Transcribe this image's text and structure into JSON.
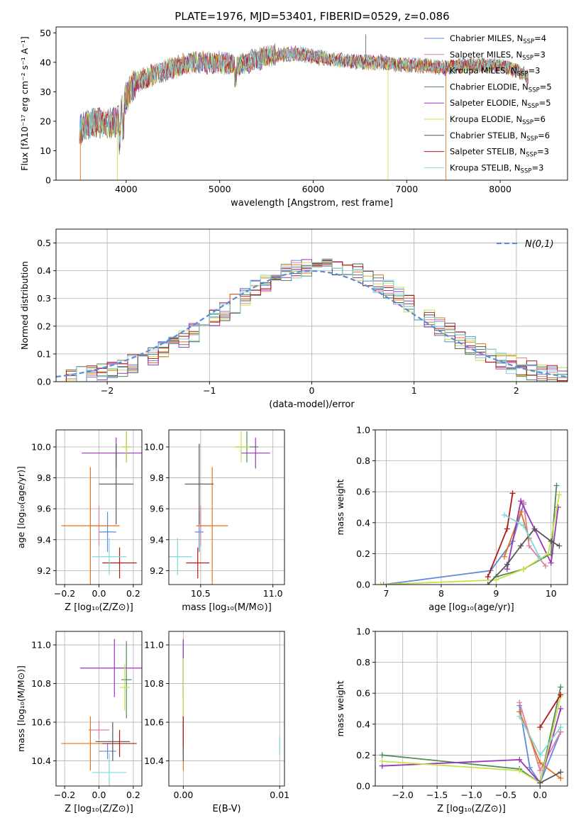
{
  "figure": {
    "title": "PLATE=1976, MJD=53401, FIBERID=0529, z=0.086"
  },
  "models": [
    {
      "name": "Chabrier MILES, N$_{SSP}$=4",
      "label": "Chabrier MILES, N",
      "sub": "SSP",
      "suffix": "=4",
      "color": "#5b8bd9"
    },
    {
      "name": "Salpeter MILES, N$_{SSP}$=3",
      "label": "Salpeter MILES, N",
      "sub": "SSP",
      "suffix": "=3",
      "color": "#e0809f"
    },
    {
      "name": "Kroupa MILES, N$_{SSP}$=3",
      "label": "Kroupa MILES, N",
      "sub": "SSP",
      "suffix": "=3",
      "color": "#e4731f"
    },
    {
      "name": "Chabrier ELODIE, N$_{SSP}$=5",
      "label": "Chabrier ELODIE, N",
      "sub": "SSP",
      "suffix": "=5",
      "color": "#4f8a5a"
    },
    {
      "name": "Salpeter ELODIE, N$_{SSP}$=5",
      "label": "Salpeter ELODIE, N",
      "sub": "SSP",
      "suffix": "=5",
      "color": "#9a35b8"
    },
    {
      "name": "Kroupa ELODIE, N$_{SSP}$=6",
      "label": "Kroupa ELODIE, N",
      "sub": "SSP",
      "suffix": "=6",
      "color": "#c8e04a"
    },
    {
      "name": "Chabrier STELIB, N$_{SSP}$=6",
      "label": "Chabrier STELIB, N",
      "sub": "SSP",
      "suffix": "=6",
      "color": "#555555"
    },
    {
      "name": "Salpeter STELIB, N$_{SSP}$=3",
      "label": "Salpeter STELIB, N",
      "sub": "SSP",
      "suffix": "=3",
      "color": "#b01818"
    },
    {
      "name": "Kroupa STELIB, N$_{SSP}$=3",
      "label": "Kroupa STELIB, N",
      "sub": "SSP",
      "suffix": "=3",
      "color": "#7fd8dc"
    }
  ],
  "chart_data": [
    {
      "id": "spectrum",
      "type": "line",
      "xlabel": "wavelength [Angstrom, rest frame]",
      "ylabel": "Flux [fλ10⁻¹⁷ erg cm⁻² s⁻¹ A⁻¹]",
      "xlim": [
        3250,
        8720
      ],
      "ylim": [
        0,
        52
      ],
      "xticks": [
        4000,
        5000,
        6000,
        7000,
        8000
      ],
      "yticks": [
        0,
        10,
        20,
        30,
        40,
        50
      ],
      "grid": false,
      "legend": "upper right",
      "continuum": {
        "x": [
          3500,
          3600,
          3700,
          3800,
          3900,
          4000,
          4100,
          4300,
          4500,
          4700,
          5000,
          5200,
          5500,
          5800,
          6000,
          6200,
          6500,
          6700,
          7000,
          7200,
          7400,
          7600,
          7800,
          8000,
          8200,
          8300
        ],
        "y": [
          17,
          19,
          20,
          19,
          20,
          28,
          33,
          36,
          38,
          40,
          40,
          39,
          42,
          43,
          42,
          41,
          40,
          40,
          39,
          39,
          38,
          39,
          39,
          39,
          37,
          35
        ]
      }
    },
    {
      "id": "residuals",
      "type": "histogram",
      "xlabel": "(data-model)/error",
      "ylabel": "Normed distribution",
      "xlim": [
        -2.5,
        2.5
      ],
      "ylim": [
        0,
        0.55
      ],
      "xticks": [
        -2,
        -1,
        0,
        1,
        2
      ],
      "yticks": [
        0.0,
        0.1,
        0.2,
        0.3,
        0.4,
        0.5
      ],
      "grid": true,
      "legend": "upper right",
      "reference": {
        "label": "N(0,1)",
        "color": "#5b8bd9",
        "style": "dashed",
        "mean": 0,
        "sigma": 1
      },
      "bin_width": 0.1
    },
    {
      "id": "age-vs-Z",
      "type": "scatter",
      "xlabel": "Z [log₁₀(Z/Z⊙)]",
      "ylabel": "age  [log₁₀(age/yr)]",
      "xlim": [
        -0.25,
        0.25
      ],
      "ylim": [
        9.11,
        10.11
      ],
      "xticks": [
        -0.2,
        0.0,
        0.2
      ],
      "yticks": [
        9.2,
        9.4,
        9.6,
        9.8,
        10.0
      ],
      "grid": true,
      "errorbars": [
        {
          "model": 0,
          "x": 0.05,
          "y": 9.45,
          "xerr": 0.05,
          "yerr": 0.13
        },
        {
          "model": 1,
          "x": 0.0,
          "y": 9.49,
          "xerr": 0.05,
          "yerr": 0.13
        },
        {
          "model": 2,
          "x": -0.05,
          "y": 9.49,
          "xerr": 0.17,
          "yerr": 0.38
        },
        {
          "model": 3,
          "x": 0.16,
          "y": 10.0,
          "xerr": 0.03,
          "yerr": 0.1
        },
        {
          "model": 4,
          "x": 0.1,
          "y": 9.96,
          "xerr": 0.2,
          "yerr": 0.1
        },
        {
          "model": 5,
          "x": 0.16,
          "y": 10.0,
          "xerr": 0.03,
          "yerr": 0.1
        },
        {
          "model": 6,
          "x": 0.1,
          "y": 9.76,
          "xerr": 0.1,
          "yerr": 0.26
        },
        {
          "model": 7,
          "x": 0.12,
          "y": 9.25,
          "xerr": 0.1,
          "yerr": 0.1
        },
        {
          "model": 8,
          "x": 0.06,
          "y": 9.29,
          "xerr": 0.1,
          "yerr": 0.12
        }
      ]
    },
    {
      "id": "age-vs-mass",
      "type": "scatter",
      "xlabel": "mass [log₁₀(M/M⊙)]",
      "ylabel": "",
      "xlim": [
        10.28,
        11.08
      ],
      "ylim": [
        9.11,
        10.11
      ],
      "xticks": [
        10.5,
        11.0
      ],
      "yticks": [
        9.2,
        9.4,
        9.6,
        9.8,
        10.0
      ],
      "grid": true,
      "errorbars": [
        {
          "model": 0,
          "x": 10.49,
          "y": 9.45,
          "xerr": 0.03,
          "yerr": 0.13
        },
        {
          "model": 1,
          "x": 10.5,
          "y": 9.49,
          "xerr": 0.03,
          "yerr": 0.13
        },
        {
          "model": 2,
          "x": 10.58,
          "y": 9.49,
          "xerr": 0.11,
          "yerr": 0.38
        },
        {
          "model": 3,
          "x": 10.82,
          "y": 10.0,
          "xerr": 0.08,
          "yerr": 0.1
        },
        {
          "model": 4,
          "x": 10.88,
          "y": 9.96,
          "xerr": 0.1,
          "yerr": 0.1
        },
        {
          "model": 5,
          "x": 10.78,
          "y": 10.0,
          "xerr": 0.06,
          "yerr": 0.1
        },
        {
          "model": 6,
          "x": 10.49,
          "y": 9.76,
          "xerr": 0.1,
          "yerr": 0.26
        },
        {
          "model": 7,
          "x": 10.48,
          "y": 9.25,
          "xerr": 0.08,
          "yerr": 0.1
        },
        {
          "model": 8,
          "x": 10.34,
          "y": 9.29,
          "xerr": 0.1,
          "yerr": 0.12
        }
      ]
    },
    {
      "id": "mass-weight-vs-age",
      "type": "line",
      "xlabel": "age  [log₁₀(age/yr)]",
      "ylabel": "mass weight",
      "xlim": [
        6.8,
        10.3
      ],
      "ylim": [
        0,
        1
      ],
      "xticks": [
        7,
        8,
        9,
        10
      ],
      "yticks": [
        0.0,
        0.2,
        0.4,
        0.6,
        0.8,
        1.0
      ],
      "grid": true,
      "series": [
        {
          "model": 0,
          "x": [
            6.95,
            8.9,
            9.3,
            9.5
          ],
          "y": [
            0.0,
            0.09,
            0.28,
            0.52
          ]
        },
        {
          "model": 1,
          "x": [
            9.5,
            9.6,
            9.9
          ],
          "y": [
            0.53,
            0.25,
            0.12
          ]
        },
        {
          "model": 2,
          "x": [
            9.15,
            9.45,
            9.6
          ],
          "y": [
            0.18,
            0.47,
            0.3
          ]
        },
        {
          "model": 3,
          "x": [
            9.0,
            9.5,
            10.0,
            10.1
          ],
          "y": [
            0.05,
            0.1,
            0.2,
            0.64
          ]
        },
        {
          "model": 4,
          "x": [
            9.2,
            9.45,
            10.0,
            10.13
          ],
          "y": [
            0.1,
            0.54,
            0.14,
            0.5
          ]
        },
        {
          "model": 5,
          "x": [
            6.9,
            9.0,
            9.5,
            9.95,
            10.15
          ],
          "y": [
            0.0,
            0.03,
            0.1,
            0.2,
            0.58
          ]
        },
        {
          "model": 6,
          "x": [
            8.85,
            9.2,
            9.45,
            9.7,
            10.0,
            10.15
          ],
          "y": [
            0.0,
            0.13,
            0.25,
            0.36,
            0.28,
            0.25
          ]
        },
        {
          "model": 7,
          "x": [
            8.85,
            9.2,
            9.3
          ],
          "y": [
            0.05,
            0.36,
            0.59
          ]
        },
        {
          "model": 8,
          "x": [
            9.15,
            9.5,
            9.8
          ],
          "y": [
            0.45,
            0.38,
            0.17
          ]
        }
      ]
    },
    {
      "id": "mass-vs-Z",
      "type": "scatter",
      "xlabel": "Z [log₁₀(Z/Z⊙)]",
      "ylabel": "mass [log₁₀(M/M⊙)]",
      "xlim": [
        -0.25,
        0.25
      ],
      "ylim": [
        10.27,
        11.07
      ],
      "xticks": [
        -0.2,
        0.0,
        0.2
      ],
      "yticks": [
        10.4,
        10.6,
        10.8,
        11.0
      ],
      "grid": true,
      "errorbars": [
        {
          "model": 0,
          "x": 0.05,
          "y": 10.45,
          "xerr": 0.05,
          "yerr": 0.04
        },
        {
          "model": 1,
          "x": 0.0,
          "y": 10.56,
          "xerr": 0.06,
          "yerr": 0.05
        },
        {
          "model": 2,
          "x": -0.05,
          "y": 10.49,
          "xerr": 0.17,
          "yerr": 0.14
        },
        {
          "model": 3,
          "x": 0.16,
          "y": 10.82,
          "xerr": 0.03,
          "yerr": 0.2
        },
        {
          "model": 4,
          "x": 0.09,
          "y": 10.88,
          "xerr": 0.2,
          "yerr": 0.15
        },
        {
          "model": 5,
          "x": 0.15,
          "y": 10.78,
          "xerr": 0.03,
          "yerr": 0.12
        },
        {
          "model": 6,
          "x": 0.08,
          "y": 10.5,
          "xerr": 0.1,
          "yerr": 0.1
        },
        {
          "model": 7,
          "x": 0.12,
          "y": 10.49,
          "xerr": 0.1,
          "yerr": 0.07
        },
        {
          "model": 8,
          "x": 0.06,
          "y": 10.34,
          "xerr": 0.1,
          "yerr": 0.1
        }
      ]
    },
    {
      "id": "mass-vs-ebv",
      "type": "scatter",
      "xlabel": "E(B-V)",
      "ylabel": "",
      "xlim": [
        -0.0015,
        0.0105
      ],
      "ylim": [
        10.27,
        11.07
      ],
      "xticks": [
        0.0,
        0.01
      ],
      "yticks": [
        10.4,
        10.6,
        10.8,
        11.0
      ],
      "grid": true,
      "errorbars": [
        {
          "model": 0,
          "x": 0.0,
          "y": 10.45,
          "xerr": 0,
          "yerr": 0.04
        },
        {
          "model": 1,
          "x": 0.0,
          "y": 10.56,
          "xerr": 0,
          "yerr": 0.05
        },
        {
          "model": 2,
          "x": 0.0,
          "y": 10.49,
          "xerr": 0,
          "yerr": 0.14
        },
        {
          "model": 3,
          "x": 0.0,
          "y": 10.82,
          "xerr": 0,
          "yerr": 0.2
        },
        {
          "model": 4,
          "x": 0.0,
          "y": 10.88,
          "xerr": 0,
          "yerr": 0.15
        },
        {
          "model": 5,
          "x": 0.0,
          "y": 10.78,
          "xerr": 0,
          "yerr": 0.15
        },
        {
          "model": 6,
          "x": 0.0,
          "y": 10.5,
          "xerr": 0,
          "yerr": 0.1
        },
        {
          "model": 7,
          "x": 0.0,
          "y": 10.55,
          "xerr": 0,
          "yerr": 0.08
        },
        {
          "model": 8,
          "x": 0.01,
          "y": 10.48,
          "xerr": 0,
          "yerr": 0.05
        }
      ]
    },
    {
      "id": "mass-weight-vs-Z",
      "type": "line",
      "xlabel": "Z [log₁₀(Z/Z⊙)]",
      "ylabel": "mass weight",
      "xlim": [
        -2.4,
        0.4
      ],
      "ylim": [
        0,
        1
      ],
      "xticks": [
        -2.0,
        -1.5,
        -1.0,
        -0.5,
        0.0
      ],
      "yticks": [
        0.0,
        0.2,
        0.4,
        0.6,
        0.8,
        1.0
      ],
      "grid": true,
      "series": [
        {
          "model": 0,
          "x": [
            -0.3,
            -0.15,
            0.0,
            0.3
          ],
          "y": [
            0.52,
            0.12,
            0.02,
            0.35
          ]
        },
        {
          "model": 1,
          "x": [
            -0.3,
            0.0,
            0.3
          ],
          "y": [
            0.54,
            0.1,
            0.35
          ]
        },
        {
          "model": 2,
          "x": [
            -0.3,
            0.0,
            0.3
          ],
          "y": [
            0.48,
            0.15,
            0.05
          ]
        },
        {
          "model": 3,
          "x": [
            -2.3,
            -0.3,
            0.0,
            0.3
          ],
          "y": [
            0.2,
            0.11,
            0.02,
            0.64
          ]
        },
        {
          "model": 4,
          "x": [
            -2.3,
            -0.3,
            0.0,
            0.3
          ],
          "y": [
            0.13,
            0.17,
            0.02,
            0.5
          ]
        },
        {
          "model": 5,
          "x": [
            -2.3,
            -0.3,
            0.0,
            0.3
          ],
          "y": [
            0.16,
            0.1,
            0.02,
            0.58
          ]
        },
        {
          "model": 6,
          "x": [
            0.0,
            0.3
          ],
          "y": [
            0.02,
            0.09
          ]
        },
        {
          "model": 7,
          "x": [
            0.0,
            0.3
          ],
          "y": [
            0.38,
            0.59
          ]
        },
        {
          "model": 8,
          "x": [
            -0.3,
            0.0,
            0.3
          ],
          "y": [
            0.45,
            0.2,
            0.38
          ]
        }
      ]
    }
  ]
}
